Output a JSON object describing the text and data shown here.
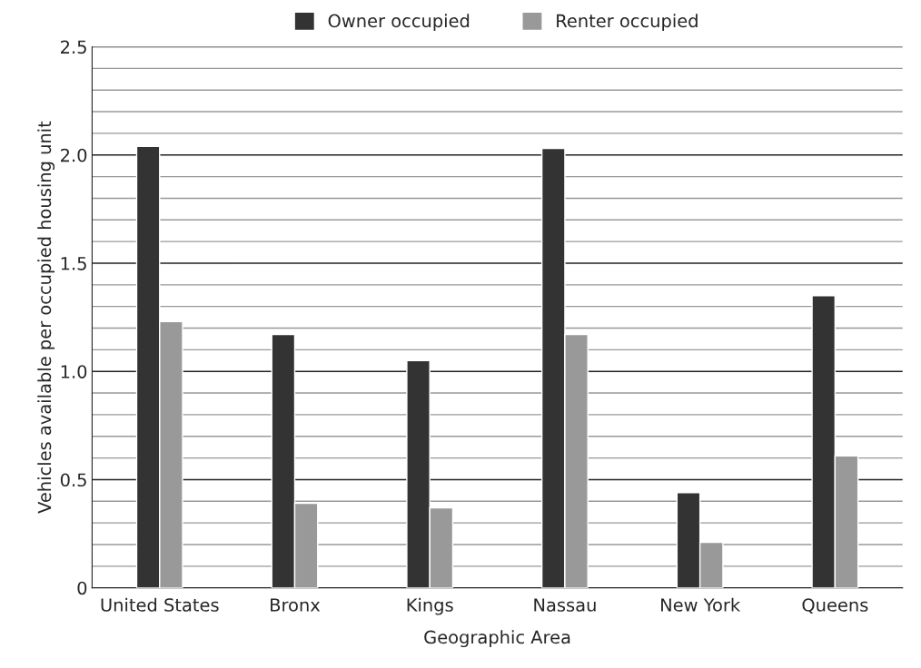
{
  "chart_data": {
    "type": "bar",
    "categories": [
      "United States",
      "Bronx",
      "Kings",
      "Nassau",
      "New York",
      "Queens"
    ],
    "series": [
      {
        "name": "Owner occupied",
        "color": "#333333",
        "values": [
          2.04,
          1.17,
          1.05,
          2.03,
          0.44,
          1.35
        ]
      },
      {
        "name": "Renter occupied",
        "color": "#999999",
        "values": [
          1.23,
          0.39,
          0.37,
          1.17,
          0.21,
          0.61
        ]
      }
    ],
    "xlabel": "Geographic Area",
    "ylabel": "Vehicles available per occupied housing unit",
    "ylim": [
      0,
      2.5
    ],
    "yticks": [
      {
        "value": 0,
        "label": "0"
      },
      {
        "value": 0.1,
        "label": null
      },
      {
        "value": 0.2,
        "label": null
      },
      {
        "value": 0.3,
        "label": null
      },
      {
        "value": 0.4,
        "label": null
      },
      {
        "value": 0.5,
        "label": "0.5"
      },
      {
        "value": 0.6,
        "label": null
      },
      {
        "value": 0.7,
        "label": null
      },
      {
        "value": 0.8,
        "label": null
      },
      {
        "value": 0.9,
        "label": null
      },
      {
        "value": 1.0,
        "label": "1.0"
      },
      {
        "value": 1.1,
        "label": null
      },
      {
        "value": 1.2,
        "label": null
      },
      {
        "value": 1.3,
        "label": null
      },
      {
        "value": 1.4,
        "label": null
      },
      {
        "value": 1.5,
        "label": "1.5"
      },
      {
        "value": 1.6,
        "label": null
      },
      {
        "value": 1.7,
        "label": null
      },
      {
        "value": 1.8,
        "label": null
      },
      {
        "value": 1.9,
        "label": null
      },
      {
        "value": 2.0,
        "label": "2.0"
      },
      {
        "value": 2.1,
        "label": null
      },
      {
        "value": 2.2,
        "label": null
      },
      {
        "value": 2.3,
        "label": null
      },
      {
        "value": 2.4,
        "label": null
      },
      {
        "value": 2.5,
        "label": "2.5"
      }
    ],
    "grid": "y",
    "legend": "top"
  }
}
